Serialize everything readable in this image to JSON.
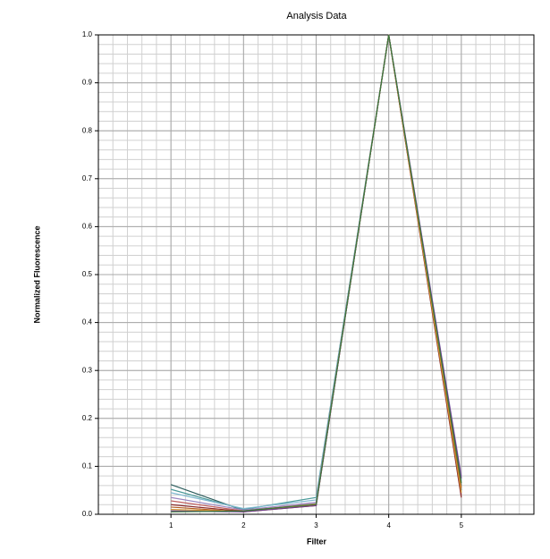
{
  "chart_data": {
    "type": "line",
    "title": "Analysis Data",
    "x_label": "Filter",
    "y_label": "Normalized Fluorescence",
    "x": [
      1,
      2,
      3,
      4,
      5
    ],
    "xlim": [
      0,
      6
    ],
    "xticks": [
      1,
      2,
      3,
      4,
      5
    ],
    "ylim": [
      0,
      1
    ],
    "yticks": [
      {
        "value": 0,
        "label": "0.0"
      },
      0.1,
      0.2,
      0.3,
      0.4,
      0.5,
      0.6,
      0.7,
      0.8,
      0.9,
      {
        "value": 1,
        "label": "1.0"
      }
    ],
    "grid": true,
    "series": [
      {
        "color": "#2f5f5f",
        "values": [
          0.062,
          0.008,
          0.02,
          1.0,
          0.05
        ]
      },
      {
        "color": "#4a9a9a",
        "values": [
          0.052,
          0.01,
          0.035,
          1.0,
          0.06
        ]
      },
      {
        "color": "#7fb8d0",
        "values": [
          0.045,
          0.012,
          0.03,
          1.0,
          0.07
        ]
      },
      {
        "color": "#9a86c0",
        "values": [
          0.035,
          0.009,
          0.025,
          1.0,
          0.08
        ]
      },
      {
        "color": "#c06060",
        "values": [
          0.028,
          0.007,
          0.022,
          1.0,
          0.04
        ]
      },
      {
        "color": "#8a2a2a",
        "values": [
          0.02,
          0.006,
          0.02,
          1.0,
          0.035
        ]
      },
      {
        "color": "#b05a20",
        "values": [
          0.015,
          0.005,
          0.018,
          1.0,
          0.055
        ]
      },
      {
        "color": "#d09030",
        "values": [
          0.01,
          0.006,
          0.019,
          1.0,
          0.045
        ]
      },
      {
        "color": "#6a3a8a",
        "values": [
          0.007,
          0.005,
          0.018,
          1.0,
          0.075
        ]
      },
      {
        "color": "#3a7a3a",
        "values": [
          0.005,
          0.007,
          0.021,
          1.0,
          0.065
        ]
      }
    ]
  }
}
